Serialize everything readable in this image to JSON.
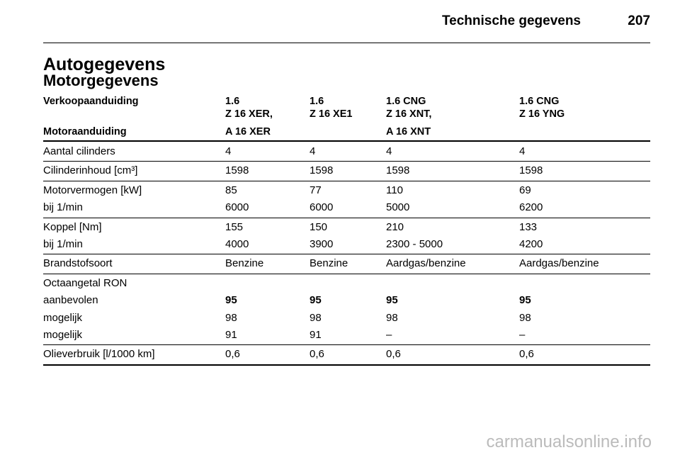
{
  "header": {
    "title": "Technische gegevens",
    "page": "207"
  },
  "section_title": "Autogegevens",
  "subsection_title": "Motorgegevens",
  "table": {
    "header_rows": [
      {
        "label": "Verkoopaanduiding",
        "cells": [
          [
            "1.6"
          ],
          [
            "1.6"
          ],
          [
            "1.6 CNG"
          ],
          [
            "1.6 CNG"
          ]
        ]
      },
      {
        "label": "Motoraanduiding",
        "cells": [
          [
            "Z 16 XER,",
            "A 16 XER"
          ],
          [
            "Z 16 XE1"
          ],
          [
            "Z 16 XNT,",
            "A 16 XNT"
          ],
          [
            "Z 16 YNG"
          ]
        ]
      }
    ],
    "groups": [
      {
        "rows": [
          {
            "label": "Aantal cilinders",
            "values": [
              "4",
              "4",
              "4",
              "4"
            ]
          }
        ]
      },
      {
        "rows": [
          {
            "label": "Cilinderinhoud [cm³]",
            "values": [
              "1598",
              "1598",
              "1598",
              "1598"
            ]
          }
        ]
      },
      {
        "rows": [
          {
            "label": "Motorvermogen [kW]",
            "values": [
              "85",
              "77",
              "110",
              "69"
            ]
          },
          {
            "label": "bij 1/min",
            "values": [
              "6000",
              "6000",
              "5000",
              "6200"
            ]
          }
        ]
      },
      {
        "rows": [
          {
            "label": "Koppel [Nm]",
            "values": [
              "155",
              "150",
              "210",
              "133"
            ]
          },
          {
            "label": "bij 1/min",
            "values": [
              "4000",
              "3900",
              "2300 - 5000",
              "4200"
            ]
          }
        ]
      },
      {
        "rows": [
          {
            "label": "Brandstofsoort",
            "values": [
              "Benzine",
              "Benzine",
              "Aardgas/benzine",
              "Aardgas/benzine"
            ]
          }
        ]
      },
      {
        "rows": [
          {
            "label": "Octaangetal RON"
          },
          {
            "label": "aanbevolen",
            "values": [
              "95",
              "95",
              "95",
              "95"
            ],
            "bold": true
          },
          {
            "label": "mogelijk",
            "values": [
              "98",
              "98",
              "98",
              "98"
            ]
          },
          {
            "label": "mogelijk",
            "values": [
              "91",
              "91",
              "–",
              "–"
            ]
          }
        ]
      },
      {
        "rows": [
          {
            "label": "Olieverbruik [l/1000 km]",
            "values": [
              "0,6",
              "0,6",
              "0,6",
              "0,6"
            ]
          }
        ]
      }
    ]
  },
  "watermark": "carmanualsonline.info"
}
